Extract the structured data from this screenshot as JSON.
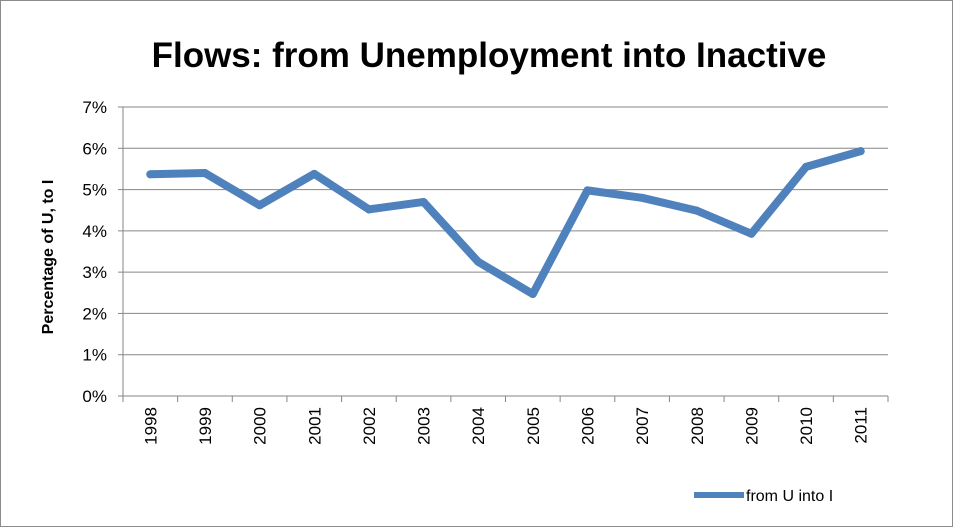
{
  "chart_data": {
    "type": "line",
    "title": "Flows: from Unemployment into Inactive",
    "xlabel": "",
    "ylabel": "Percentage of U, to I",
    "categories": [
      "1998",
      "1999",
      "2000",
      "2001",
      "2002",
      "2003",
      "2004",
      "2005",
      "2006",
      "2007",
      "2008",
      "2009",
      "2010",
      "2011"
    ],
    "series": [
      {
        "name": "from U into I",
        "values": [
          5.37,
          5.4,
          4.62,
          5.38,
          4.52,
          4.7,
          3.25,
          2.47,
          4.98,
          4.8,
          4.49,
          3.93,
          5.55,
          5.93
        ]
      }
    ],
    "ylim": [
      0,
      7
    ],
    "yticks": [
      "0%",
      "1%",
      "2%",
      "3%",
      "4%",
      "5%",
      "6%",
      "7%"
    ],
    "ytick_values": [
      0,
      1,
      2,
      3,
      4,
      5,
      6,
      7
    ],
    "grid": true,
    "legend": "bottom-right",
    "color": "#4f81bd"
  }
}
